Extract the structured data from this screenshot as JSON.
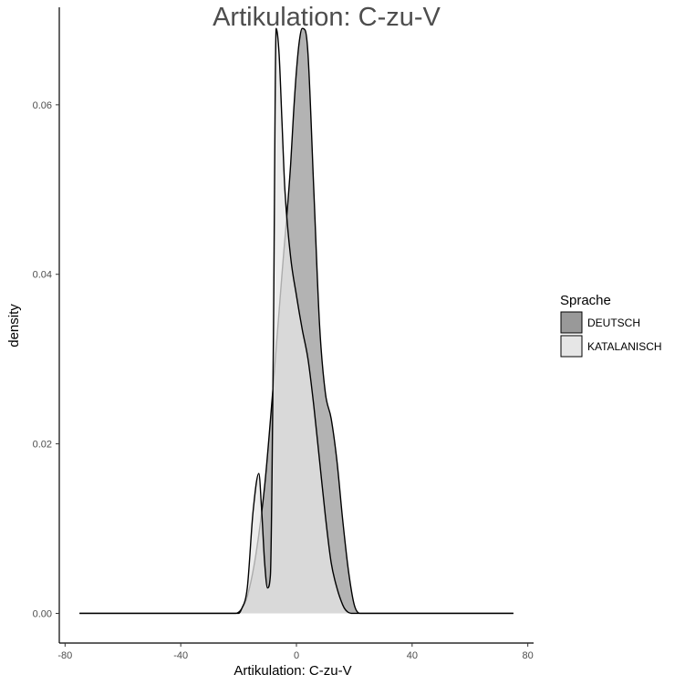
{
  "chart_data": {
    "type": "area",
    "title": "Artikulation: C-zu-V",
    "xlabel": "Artikulation: C-zu-V",
    "ylabel": "density",
    "xlim": [
      -82,
      82
    ],
    "ylim": [
      -0.0035,
      0.0715
    ],
    "xticks": [
      -80,
      -40,
      0,
      40,
      80
    ],
    "yticks": [
      0.0,
      0.02,
      0.04,
      0.06
    ],
    "xtick_labels": [
      "-80",
      "-40",
      "0",
      "40",
      "80"
    ],
    "ytick_labels": [
      "0.00",
      "0.02",
      "0.04",
      "0.06"
    ],
    "grid": false,
    "legend": {
      "title": "Sprache",
      "placement": "right"
    },
    "series": [
      {
        "name": "DEUTSCH",
        "color": "#999999",
        "x": [
          -75,
          -21,
          -19,
          -17,
          -14,
          -11,
          -8,
          -5,
          -2,
          -1,
          0,
          1,
          2,
          3,
          4,
          6,
          8,
          10,
          12,
          14,
          16,
          18,
          20,
          22,
          75
        ],
        "y": [
          0,
          0,
          0.0005,
          0.002,
          0.007,
          0.015,
          0.027,
          0.04,
          0.053,
          0.059,
          0.064,
          0.0675,
          0.069,
          0.0688,
          0.066,
          0.05,
          0.034,
          0.026,
          0.023,
          0.018,
          0.011,
          0.005,
          0.001,
          0,
          0
        ]
      },
      {
        "name": "KATALANISCH",
        "color": "#e6e6e6",
        "x": [
          -75,
          -20,
          -19,
          -17,
          -15,
          -13,
          -12,
          -11,
          -10,
          -9,
          -8,
          -7,
          -6,
          -5,
          -4,
          -2,
          0,
          2,
          4,
          6,
          8,
          10,
          12,
          14,
          16,
          17,
          19,
          75
        ],
        "y": [
          0,
          0,
          0.0005,
          0.003,
          0.012,
          0.0165,
          0.012,
          0.006,
          0.003,
          0.0045,
          0.031,
          0.069,
          0.066,
          0.058,
          0.05,
          0.042,
          0.0375,
          0.0335,
          0.03,
          0.0245,
          0.018,
          0.0115,
          0.006,
          0.003,
          0.001,
          0.0004,
          0,
          0
        ]
      }
    ]
  }
}
